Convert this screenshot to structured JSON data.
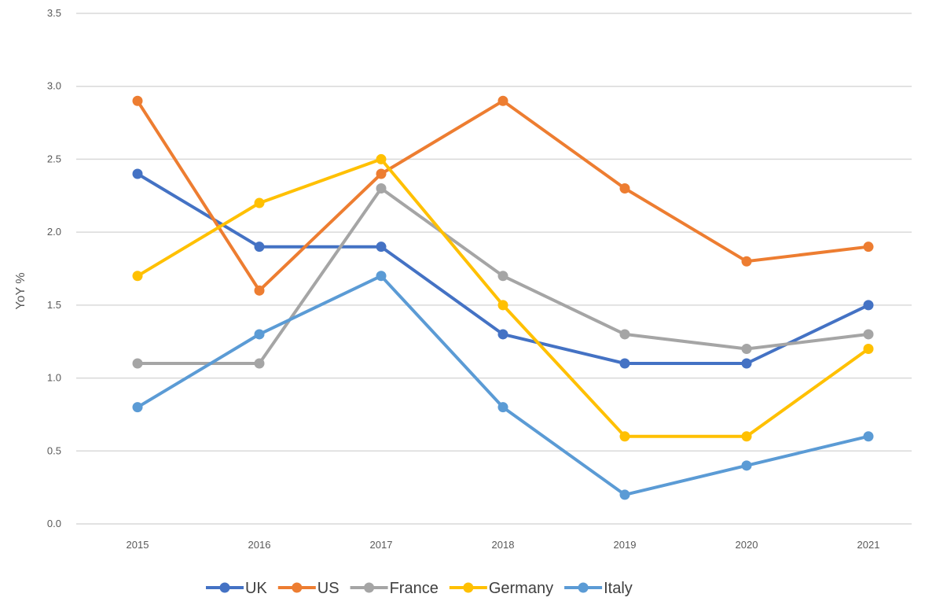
{
  "chart_data": {
    "type": "line",
    "title": "",
    "xlabel": "",
    "ylabel": "YoY %",
    "x": [
      "2015",
      "2016",
      "2017",
      "2018",
      "2019",
      "2020",
      "2021"
    ],
    "ylim": [
      0,
      3.5
    ],
    "yticks": [
      "0.0",
      "0.5",
      "1.0",
      "1.5",
      "2.0",
      "2.5",
      "3.0",
      "3.5"
    ],
    "grid": true,
    "legend_position": "bottom",
    "series": [
      {
        "name": "UK",
        "color": "#4472c4",
        "values": [
          2.4,
          1.9,
          1.9,
          1.3,
          1.1,
          1.1,
          1.5
        ]
      },
      {
        "name": "US",
        "color": "#ed7d31",
        "values": [
          2.9,
          1.6,
          2.4,
          2.9,
          2.3,
          1.8,
          1.9
        ]
      },
      {
        "name": "France",
        "color": "#a5a5a5",
        "values": [
          1.1,
          1.1,
          2.3,
          1.7,
          1.3,
          1.2,
          1.3
        ]
      },
      {
        "name": "Germany",
        "color": "#ffc000",
        "values": [
          1.7,
          2.2,
          2.5,
          1.5,
          0.6,
          0.6,
          1.2
        ]
      },
      {
        "name": "Italy",
        "color": "#5b9bd5",
        "values": [
          0.8,
          1.3,
          1.7,
          0.8,
          0.2,
          0.4,
          0.6
        ]
      }
    ]
  }
}
